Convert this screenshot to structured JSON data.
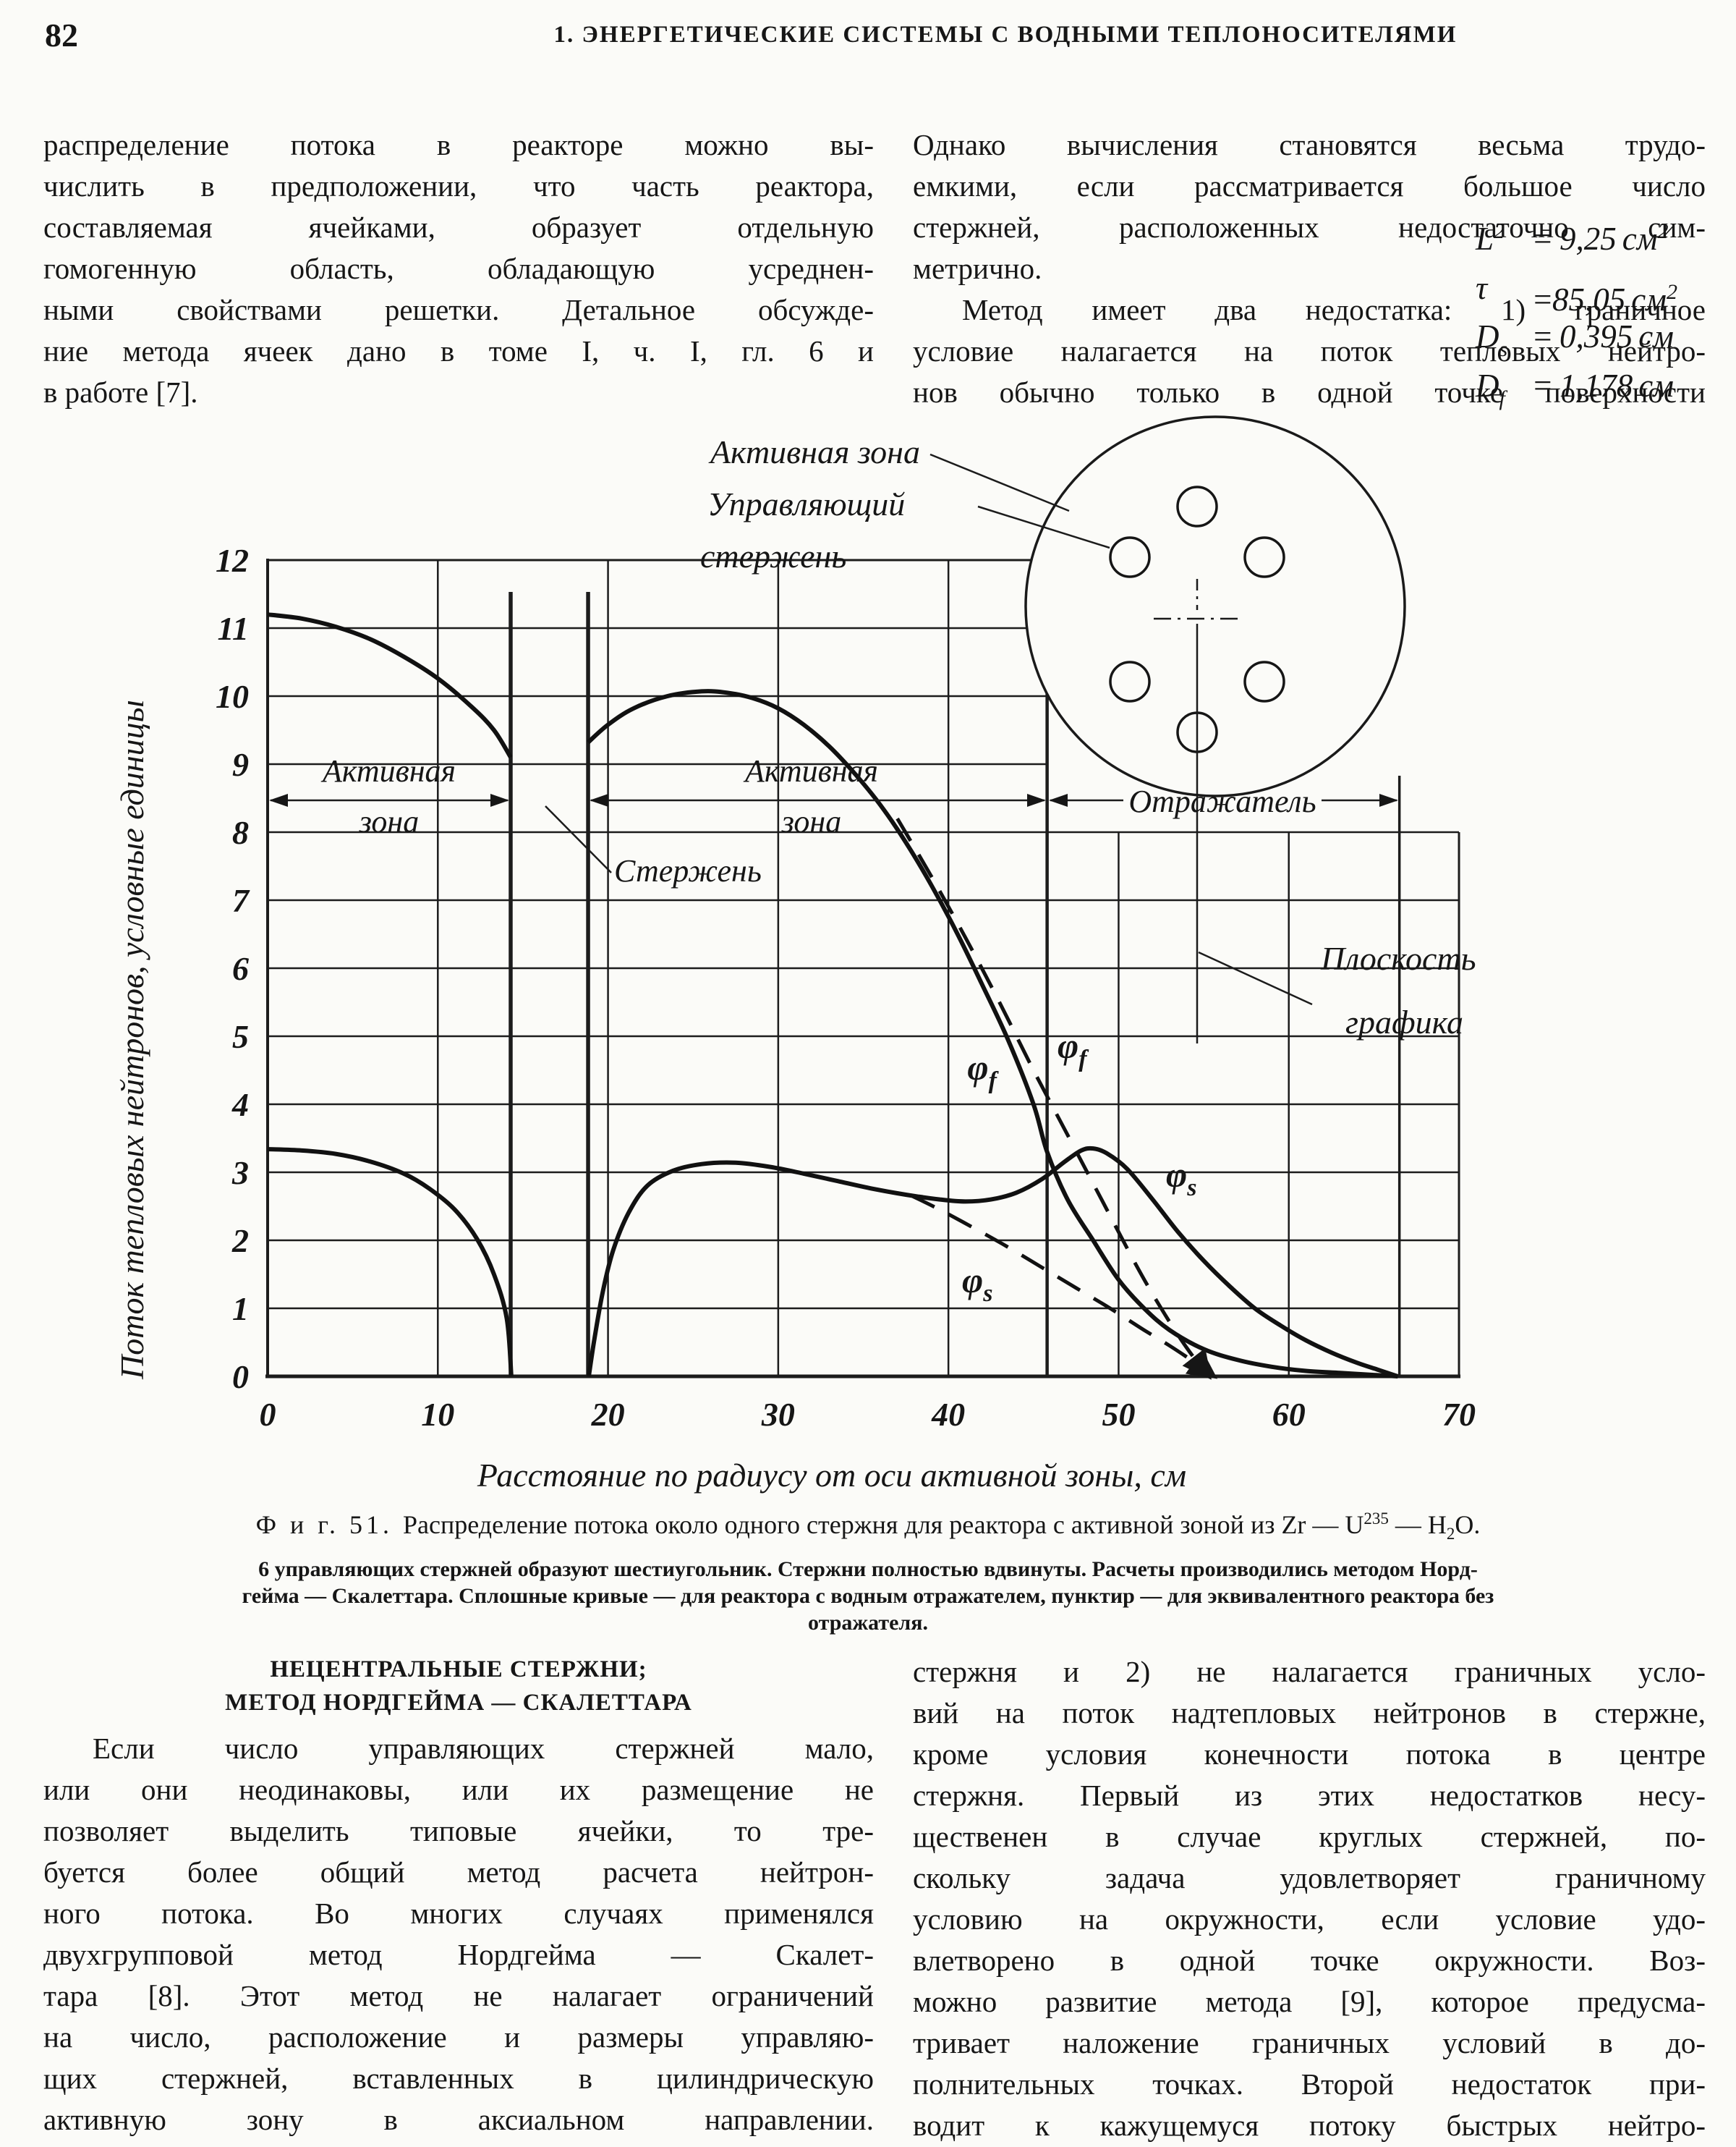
{
  "page": {
    "number": "82",
    "running_head": "1. ЭНЕРГЕТИЧЕСКИЕ СИСТЕМЫ С ВОДНЫМИ ТЕПЛОНОСИТЕЛЯМИ"
  },
  "top_left_column": {
    "lines": [
      {
        "t": "распределение потока в реакторе можно вы-"
      },
      {
        "t": "числить в предположении, что часть реактора,"
      },
      {
        "t": "составляемая ячейками, образует отдельную"
      },
      {
        "t": "гомогенную область, обладающую усреднен-"
      },
      {
        "t": "ными свойствами решетки. Детальное обсужде-"
      },
      {
        "t": "ние метода ячеек дано в томе I, ч. I, гл. 6 и"
      },
      {
        "t": "в работе [7].",
        "end": true
      }
    ]
  },
  "top_right_column": {
    "lines": [
      {
        "t": "Однако вычисления становятся весьма трудо-"
      },
      {
        "t": "емкими, если рассматривается большое число"
      },
      {
        "t": "стержней, расположенных недостаточно сим-"
      },
      {
        "t": "метрично.",
        "end": true
      },
      {
        "t": "Метод имеет два недостатка: 1) граничное",
        "indent": true
      },
      {
        "t": "условие налагается на поток тепловых нейтро-"
      },
      {
        "t": "нов обычно только в одной точке поверхности"
      }
    ]
  },
  "figure": {
    "labels": {
      "zone1_line1": "Активная",
      "zone1_line2": "зона",
      "zone2_line1": "Активная",
      "zone2_line2": "зона",
      "reflector": "Отражатель",
      "rod": "Стержень",
      "inset_active_zone": "Активная зона",
      "inset_rod_line1": "Управляющий",
      "inset_rod_line2": "стержень",
      "plane_line1": "Плоскость",
      "plane_line2": "графика"
    },
    "curve_labels": {
      "phi": "φ",
      "f": "f",
      "s": "s"
    },
    "inset": {
      "params": [
        {
          "var": "L",
          "sup": "2",
          "eq": " = ",
          "value": "9,25",
          "unit": "см",
          "unit_sup": "2"
        },
        {
          "var": "τ",
          "sup": "",
          "eq": " = ",
          "value": "85,05",
          "unit": "см",
          "unit_sup": "2"
        },
        {
          "var": "D",
          "sub": "s",
          "eq": " = ",
          "value": "0,395",
          "unit": "см"
        },
        {
          "var": "D",
          "sub": "f",
          "eq": " = ",
          "value": "1,178",
          "unit": "см"
        }
      ]
    },
    "chart_data": {
      "type": "line",
      "title": "",
      "xlabel": "Расстояние по радиусу от оси активной зоны, см",
      "ylabel": "Поток тепловых нейтронов, условные единицы",
      "xlim": [
        0,
        70
      ],
      "ylim": [
        0,
        12
      ],
      "x_ticks": [
        0,
        10,
        20,
        30,
        40,
        50,
        60,
        70
      ],
      "y_ticks": [
        0,
        1,
        2,
        3,
        4,
        5,
        6,
        7,
        8,
        9,
        10,
        11,
        12
      ],
      "grid": {
        "h_lines_full": [
          1,
          2,
          3,
          4,
          5,
          6,
          7,
          8
        ],
        "h_lines_core_only": [
          9,
          10,
          11,
          12
        ],
        "v_lines_core": [
          10,
          20,
          30,
          40
        ],
        "v_lines_reflector": [
          50,
          60
        ],
        "core_right_boundary": 45.8,
        "reflector_outer_boundary": 66.5,
        "rod_lines": [
          14.28,
          18.83
        ],
        "x_max": 70,
        "y_core_top": 12,
        "y_reflector_top": 8
      },
      "series_notes": {
        "solid": "для реактора с водным отражателем",
        "dashed": "для эквивалентного реактора без отражателя"
      },
      "series": [
        {
          "name": "phi_f_solid_left_of_rod",
          "style": "solid",
          "points": [
            [
              0,
              11.2
            ],
            [
              2,
              11.14
            ],
            [
              4,
              11.02
            ],
            [
              6,
              10.84
            ],
            [
              8,
              10.58
            ],
            [
              10,
              10.26
            ],
            [
              12,
              9.84
            ],
            [
              13.3,
              9.5
            ],
            [
              14.28,
              9.1
            ]
          ]
        },
        {
          "name": "phi_f_solid_main",
          "style": "solid",
          "points": [
            [
              18.83,
              9.32
            ],
            [
              20,
              9.58
            ],
            [
              21.5,
              9.82
            ],
            [
              23.5,
              10.0
            ],
            [
              25.5,
              10.07
            ],
            [
              27,
              10.05
            ],
            [
              28.5,
              9.97
            ],
            [
              30,
              9.82
            ],
            [
              31.5,
              9.58
            ],
            [
              33,
              9.26
            ],
            [
              34.5,
              8.86
            ],
            [
              36,
              8.4
            ],
            [
              37.5,
              7.85
            ],
            [
              39,
              7.22
            ],
            [
              40.5,
              6.52
            ],
            [
              42,
              5.75
            ],
            [
              43.5,
              4.95
            ],
            [
              45,
              4.0
            ],
            [
              45.8,
              3.3
            ],
            [
              47,
              2.6
            ],
            [
              48.5,
              2.0
            ],
            [
              50,
              1.42
            ],
            [
              51.5,
              1.0
            ],
            [
              53,
              0.68
            ],
            [
              55,
              0.4
            ],
            [
              57,
              0.24
            ],
            [
              59,
              0.14
            ],
            [
              61,
              0.08
            ],
            [
              63,
              0.05
            ],
            [
              65,
              0.02
            ],
            [
              66.4,
              0
            ]
          ]
        },
        {
          "name": "phi_f_dashed_bare",
          "style": "dashed",
          "arrow_end": true,
          "points": [
            [
              37,
              8.2
            ],
            [
              39,
              7.35
            ],
            [
              41,
              6.45
            ],
            [
              43,
              5.5
            ],
            [
              45,
              4.5
            ],
            [
              47,
              3.55
            ],
            [
              49,
              2.6
            ],
            [
              51,
              1.65
            ],
            [
              52.5,
              1.0
            ],
            [
              54,
              0.42
            ],
            [
              55.3,
              0
            ]
          ]
        },
        {
          "name": "phi_s_solid_left_of_rod",
          "style": "solid",
          "points": [
            [
              0,
              3.34
            ],
            [
              2,
              3.32
            ],
            [
              4,
              3.27
            ],
            [
              6,
              3.16
            ],
            [
              8,
              2.98
            ],
            [
              9.5,
              2.76
            ],
            [
              11,
              2.45
            ],
            [
              12.3,
              2.02
            ],
            [
              13.3,
              1.5
            ],
            [
              14.05,
              0.85
            ],
            [
              14.32,
              0
            ]
          ]
        },
        {
          "name": "phi_s_solid_main",
          "style": "solid",
          "points": [
            [
              18.87,
              0
            ],
            [
              19.2,
              0.55
            ],
            [
              19.7,
              1.25
            ],
            [
              20.3,
              1.85
            ],
            [
              21.2,
              2.4
            ],
            [
              22.3,
              2.8
            ],
            [
              23.8,
              3.02
            ],
            [
              25.5,
              3.12
            ],
            [
              27.5,
              3.14
            ],
            [
              29.5,
              3.08
            ],
            [
              31.5,
              2.98
            ],
            [
              33.5,
              2.87
            ],
            [
              35.5,
              2.76
            ],
            [
              37.5,
              2.67
            ],
            [
              39.5,
              2.6
            ],
            [
              41,
              2.57
            ],
            [
              42.5,
              2.6
            ],
            [
              44,
              2.7
            ],
            [
              45.5,
              2.9
            ],
            [
              46.8,
              3.15
            ],
            [
              47.8,
              3.32
            ],
            [
              48.5,
              3.35
            ],
            [
              49.3,
              3.28
            ],
            [
              50.5,
              3.05
            ],
            [
              52,
              2.6
            ],
            [
              53.5,
              2.12
            ],
            [
              55,
              1.7
            ],
            [
              56.5,
              1.33
            ],
            [
              58,
              1.0
            ],
            [
              59.5,
              0.75
            ],
            [
              61,
              0.53
            ],
            [
              62.5,
              0.35
            ],
            [
              64,
              0.2
            ],
            [
              65.2,
              0.1
            ],
            [
              66.4,
              0
            ]
          ]
        },
        {
          "name": "phi_s_dashed_bare",
          "style": "dashed",
          "arrow_end": true,
          "points": [
            [
              37.8,
              2.66
            ],
            [
              39.5,
              2.45
            ],
            [
              41.5,
              2.18
            ],
            [
              43.5,
              1.9
            ],
            [
              45.5,
              1.6
            ],
            [
              47.5,
              1.3
            ],
            [
              49.5,
              1.0
            ],
            [
              51.5,
              0.68
            ],
            [
              53,
              0.45
            ],
            [
              54.5,
              0.2
            ],
            [
              55.6,
              0
            ]
          ]
        }
      ]
    }
  },
  "caption": {
    "fig_label": "Ф и г.  51.",
    "text_pre": "Распределение потока около одного стержня для реактора с активной зоной из Zr — U",
    "text_sup": "235",
    "text_mid": " — H",
    "text_sub": "2",
    "text_post": "O.",
    "note_line1": "6 управляющих стержней образуют шестиугольник. Стержни полностью вдвинуты. Расчеты производились методом Норд-",
    "note_line2": "гейма — Скалеттара. Сплошные кривые — для реактора с водным отражателем, пунктир — для эквивалентного реактора без",
    "note_line3": "отражателя."
  },
  "section": {
    "heading_line1": "НЕЦЕНТРАЛЬНЫЕ СТЕРЖНИ;",
    "heading_line2": "МЕТОД НОРДГЕЙМА — СКАЛЕТТАРА"
  },
  "bottom_left_column": {
    "lines": [
      {
        "t": "Если число управляющих стержней мало,",
        "indent": true
      },
      {
        "t": "или они неодинаковы, или их размещение не"
      },
      {
        "t": "позволяет выделить типовые ячейки, то тре-"
      },
      {
        "t": "буется более общий метод расчета нейтрон-"
      },
      {
        "t": "ного потока. Во многих случаях применялся"
      },
      {
        "t": "двухгрупповой метод Нордгейма — Скалет-"
      },
      {
        "t": "тара [8]. Этот метод не налагает ограничений"
      },
      {
        "t": "на число, расположение и размеры управляю-"
      },
      {
        "t": "щих стержней, вставленных в цилиндрическую"
      },
      {
        "t": "активную зону в аксиальном направлении."
      }
    ]
  },
  "bottom_right_column": {
    "lines": [
      {
        "t": "стержня и 2) не налагается граничных усло-"
      },
      {
        "t": "вий на поток надтепловых нейтронов в стержне,"
      },
      {
        "t": "кроме условия конечности потока в центре"
      },
      {
        "t": "стержня. Первый из этих недостатков несу-"
      },
      {
        "t": "щественен в случае круглых стержней, по-"
      },
      {
        "t": "скольку задача удовлетворяет граничному"
      },
      {
        "t": "условию на окружности, если условие удо-"
      },
      {
        "t": "влетворено в одной точке окружности. Воз-"
      },
      {
        "t": "можно развитие метода [9], которое предусма-"
      },
      {
        "t": "тривает наложение граничных условий в до-"
      },
      {
        "t": "полнительных точках. Второй недостаток при-"
      },
      {
        "t": "водит к кажущемуся потоку быстрых нейтро-"
      }
    ]
  }
}
